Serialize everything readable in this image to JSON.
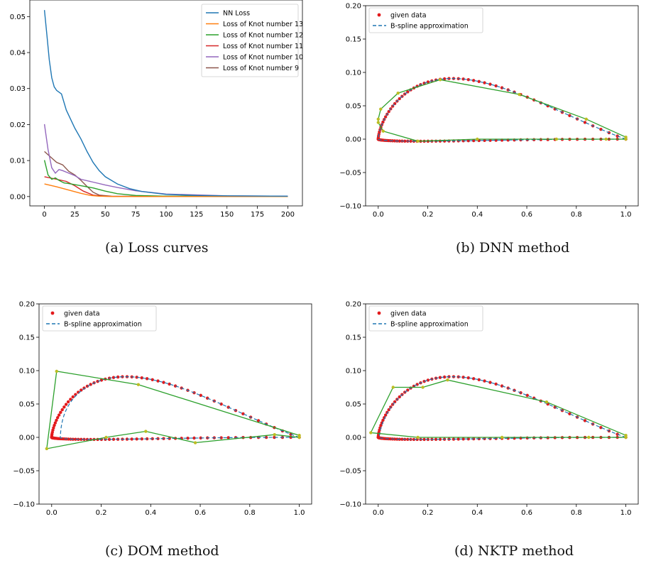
{
  "captions": {
    "a": "(a)  Loss curves",
    "b": "(b)  DNN method",
    "c": "(c)  DOM method",
    "d": "(d)  NKTP method"
  },
  "colors": {
    "nn": "#1f77b4",
    "k13": "#ff7f0e",
    "k12": "#2ca02c",
    "k11": "#d62728",
    "k10": "#9467bd",
    "k9": "#8c564b",
    "data": "#e31a1c",
    "spline": "#1f77b4",
    "ctrl": "#2ca02c",
    "ctrlpt": "#bcbd22"
  },
  "chart_data": [
    {
      "id": "loss",
      "type": "line",
      "xlim": [
        -12,
        212
      ],
      "ylim": [
        -0.0026,
        0.0546
      ],
      "xticks": [
        0,
        25,
        50,
        75,
        100,
        125,
        150,
        175,
        200
      ],
      "yticks": [
        0.0,
        0.01,
        0.02,
        0.03,
        0.04,
        0.05
      ],
      "ytick_labels": [
        "0.00",
        "0.01",
        "0.02",
        "0.03",
        "0.04",
        "0.05"
      ],
      "legend_position": "top-right",
      "series": [
        {
          "name": "NN Loss",
          "color_key": "nn",
          "points": [
            [
              0,
              0.0518
            ],
            [
              2,
              0.045
            ],
            [
              4,
              0.038
            ],
            [
              6,
              0.033
            ],
            [
              8,
              0.0305
            ],
            [
              10,
              0.0295
            ],
            [
              14,
              0.0285
            ],
            [
              18,
              0.024
            ],
            [
              25,
              0.019
            ],
            [
              30,
              0.016
            ],
            [
              35,
              0.0125
            ],
            [
              40,
              0.0095
            ],
            [
              45,
              0.0072
            ],
            [
              50,
              0.0055
            ],
            [
              60,
              0.0035
            ],
            [
              70,
              0.0022
            ],
            [
              80,
              0.0014
            ],
            [
              100,
              0.0006
            ],
            [
              125,
              0.0003
            ],
            [
              150,
              0.0002
            ],
            [
              200,
              0.0001
            ]
          ]
        },
        {
          "name": "Loss of Knot number 13",
          "color_key": "k13",
          "points": [
            [
              0,
              0.0035
            ],
            [
              10,
              0.0027
            ],
            [
              20,
              0.0018
            ],
            [
              30,
              0.0009
            ],
            [
              38,
              0.0003
            ],
            [
              45,
              0.0001
            ],
            [
              60,
              0.0
            ],
            [
              200,
              0.0
            ]
          ]
        },
        {
          "name": "Loss of Knot number 12",
          "color_key": "k12",
          "points": [
            [
              0,
              0.0101
            ],
            [
              3,
              0.006
            ],
            [
              6,
              0.0048
            ],
            [
              9,
              0.0052
            ],
            [
              12,
              0.0045
            ],
            [
              16,
              0.0038
            ],
            [
              20,
              0.0036
            ],
            [
              30,
              0.003
            ],
            [
              40,
              0.0024
            ],
            [
              50,
              0.0015
            ],
            [
              60,
              0.0008
            ],
            [
              75,
              0.0003
            ],
            [
              100,
              0.0001
            ],
            [
              200,
              0.0
            ]
          ]
        },
        {
          "name": "Loss of Knot number 11",
          "color_key": "k11",
          "points": [
            [
              0,
              0.0055
            ],
            [
              10,
              0.0048
            ],
            [
              18,
              0.0042
            ],
            [
              25,
              0.003
            ],
            [
              32,
              0.0015
            ],
            [
              40,
              0.0004
            ],
            [
              48,
              0.0001
            ],
            [
              60,
              0.0
            ],
            [
              200,
              0.0
            ]
          ]
        },
        {
          "name": "Loss of Knot number 10",
          "color_key": "k10",
          "points": [
            [
              0,
              0.0201
            ],
            [
              3,
              0.013
            ],
            [
              6,
              0.008
            ],
            [
              9,
              0.0065
            ],
            [
              12,
              0.0075
            ],
            [
              15,
              0.0072
            ],
            [
              20,
              0.0065
            ],
            [
              25,
              0.0058
            ],
            [
              30,
              0.0048
            ],
            [
              40,
              0.004
            ],
            [
              50,
              0.0032
            ],
            [
              60,
              0.0025
            ],
            [
              75,
              0.0016
            ],
            [
              100,
              0.0007
            ],
            [
              150,
              0.0002
            ],
            [
              200,
              0.0001
            ]
          ]
        },
        {
          "name": "Loss of Knot number 9",
          "color_key": "k9",
          "points": [
            [
              0,
              0.0125
            ],
            [
              5,
              0.011
            ],
            [
              10,
              0.0095
            ],
            [
              15,
              0.0088
            ],
            [
              20,
              0.007
            ],
            [
              25,
              0.006
            ],
            [
              30,
              0.0045
            ],
            [
              35,
              0.0028
            ],
            [
              40,
              0.0012
            ],
            [
              45,
              0.0004
            ],
            [
              55,
              0.0001
            ],
            [
              200,
              0.0
            ]
          ]
        }
      ]
    },
    {
      "id": "dnn",
      "type": "scatter",
      "xlim": [
        -0.051,
        1.05
      ],
      "ylim": [
        -0.1,
        0.2
      ],
      "xticks": [
        0.0,
        0.2,
        0.4,
        0.6,
        0.8,
        1.0
      ],
      "xtick_labels": [
        "0.0",
        "0.2",
        "0.4",
        "0.6",
        "0.8",
        "1.0"
      ],
      "yticks": [
        -0.1,
        -0.05,
        0.0,
        0.05,
        0.1,
        0.15,
        0.2
      ],
      "ytick_labels": [
        "−0.10",
        "−0.05",
        "0.00",
        "0.05",
        "0.10",
        "0.15",
        "0.20"
      ],
      "legend": [
        "given data",
        "B-spline approximation"
      ],
      "legend_position": "top-left",
      "control_polygon": [
        [
          1.0,
          0.003
        ],
        [
          0.84,
          0.03
        ],
        [
          0.57,
          0.067
        ],
        [
          0.25,
          0.089
        ],
        [
          0.08,
          0.069
        ],
        [
          0.01,
          0.045
        ],
        [
          0.0,
          0.03
        ],
        [
          0.0,
          0.025
        ],
        [
          0.02,
          0.012
        ],
        [
          0.16,
          -0.003
        ],
        [
          0.4,
          0.0
        ],
        [
          0.72,
          0.0
        ],
        [
          0.92,
          0.0
        ],
        [
          1.0,
          0.0
        ]
      ]
    },
    {
      "id": "dom",
      "type": "scatter",
      "xlim": [
        -0.051,
        1.05
      ],
      "ylim": [
        -0.1,
        0.2
      ],
      "xticks": [
        0.0,
        0.2,
        0.4,
        0.6,
        0.8,
        1.0
      ],
      "xtick_labels": [
        "0.0",
        "0.2",
        "0.4",
        "0.6",
        "0.8",
        "1.0"
      ],
      "yticks": [
        -0.1,
        -0.05,
        0.0,
        0.05,
        0.1,
        0.15,
        0.2
      ],
      "ytick_labels": [
        "−0.10",
        "−0.05",
        "0.00",
        "0.05",
        "0.10",
        "0.15",
        "0.20"
      ],
      "legend": [
        "given data",
        "B-spline approximation"
      ],
      "legend_position": "top-left",
      "control_polygon": [
        [
          1.0,
          0.003
        ],
        [
          0.35,
          0.079
        ],
        [
          0.02,
          0.099
        ],
        [
          -0.02,
          -0.017
        ],
        [
          0.22,
          0.0
        ],
        [
          0.38,
          0.009
        ],
        [
          0.58,
          -0.008
        ],
        [
          0.9,
          0.004
        ],
        [
          1.0,
          0.0
        ]
      ]
    },
    {
      "id": "nktp",
      "type": "scatter",
      "xlim": [
        -0.051,
        1.05
      ],
      "ylim": [
        -0.1,
        0.2
      ],
      "xticks": [
        0.0,
        0.2,
        0.4,
        0.6,
        0.8,
        1.0
      ],
      "xtick_labels": [
        "0.0",
        "0.2",
        "0.4",
        "0.6",
        "0.8",
        "1.0"
      ],
      "yticks": [
        -0.1,
        -0.05,
        0.0,
        0.05,
        0.1,
        0.15,
        0.2
      ],
      "ytick_labels": [
        "−0.10",
        "−0.05",
        "0.00",
        "0.05",
        "0.10",
        "0.15",
        "0.20"
      ],
      "legend": [
        "given data",
        "B-spline approximation"
      ],
      "legend_position": "top-left",
      "control_polygon": [
        [
          1.0,
          0.003
        ],
        [
          0.68,
          0.053
        ],
        [
          0.28,
          0.086
        ],
        [
          0.18,
          0.075
        ],
        [
          0.06,
          0.075
        ],
        [
          -0.03,
          0.007
        ],
        [
          0.16,
          0.0
        ],
        [
          0.5,
          0.0
        ],
        [
          0.85,
          0.0
        ],
        [
          1.0,
          0.0
        ]
      ]
    }
  ]
}
